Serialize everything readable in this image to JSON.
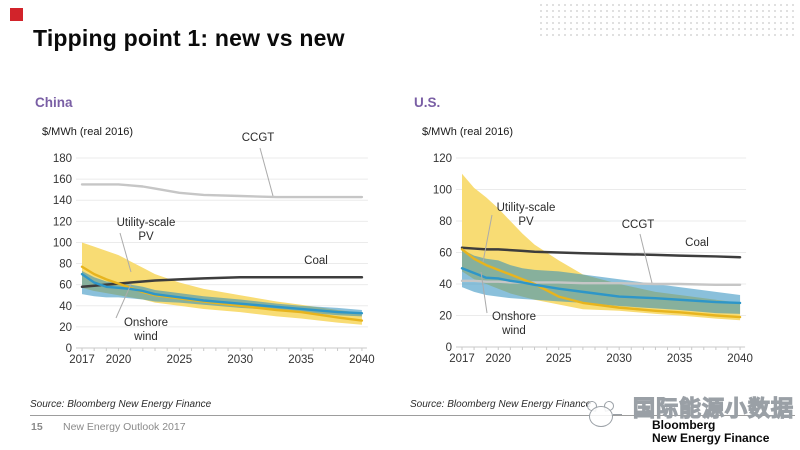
{
  "slide": {
    "title": "Tipping point 1: new vs new"
  },
  "colors": {
    "accent_red": "#D2232A",
    "heading_purple": "#7A5FA5",
    "ccgt_line": "#c6c6c6",
    "coal_line": "#3d3d3d",
    "pv_line": "#e7b41e",
    "wind_line": "#2e96c8",
    "pv_band": "#F8DC74",
    "wind_band": "rgba(41,140,190,0.55)"
  },
  "chart_data": [
    {
      "type": "line",
      "title": "China",
      "ylabel": "$/MWh (real 2016)",
      "xlim": [
        2017,
        2040
      ],
      "ylim": [
        0,
        180
      ],
      "grid": true,
      "y_ticks": [
        0,
        20,
        40,
        60,
        80,
        100,
        120,
        140,
        160,
        180
      ],
      "x_labeled_ticks": [
        2017,
        2020,
        2025,
        2030,
        2035,
        2040
      ],
      "years": [
        2017,
        2018,
        2019,
        2020,
        2021,
        2022,
        2023,
        2025,
        2027,
        2030,
        2033,
        2035,
        2038,
        2040
      ],
      "series": [
        {
          "name": "CCGT",
          "color": "#c6c6c6",
          "width": 2.4,
          "values": [
            155,
            155,
            155,
            155,
            154,
            153,
            151,
            147,
            145,
            144,
            143,
            143,
            143,
            143
          ]
        },
        {
          "name": "Coal",
          "color": "#3d3d3d",
          "width": 2.5,
          "values": [
            58,
            59,
            60,
            61,
            62,
            63,
            64,
            65,
            66,
            67,
            67,
            67,
            67,
            67
          ]
        },
        {
          "name": "Utility-scale PV",
          "color": "#e7b41e",
          "width": 2.4,
          "values": [
            77,
            70,
            65,
            61,
            57,
            53,
            50,
            47,
            44,
            40,
            36,
            34,
            29,
            26
          ],
          "band": {
            "color": "#F8DC74",
            "upper": [
              100,
              96,
              92,
              88,
              82,
              76,
              70,
              62,
              56,
              50,
              44,
              41,
              36,
              33
            ],
            "lower": [
              57,
              54,
              52,
              50,
              48,
              46,
              43,
              40,
              37,
              34,
              30,
              28,
              24,
              22
            ]
          }
        },
        {
          "name": "Onshore wind",
          "color": "#2e96c8",
          "width": 2.4,
          "values": [
            70,
            62,
            58,
            57,
            56,
            54,
            51,
            48,
            45,
            42,
            39,
            37,
            34,
            33
          ],
          "band": {
            "color": "rgba(41,140,190,0.55)",
            "upper": [
              73,
              67,
              63,
              62,
              60,
              58,
              55,
              52,
              49,
              46,
              42,
              40,
              38,
              36
            ],
            "lower": [
              51,
              49,
              48,
              48,
              47,
              46,
              44,
              43,
              41,
              38,
              36,
              34,
              31,
              30
            ]
          }
        }
      ],
      "annotations": {
        "ccgt": "CCGT",
        "pv": "Utility-scale\nPV",
        "wind": "Onshore\nwind",
        "coal": "Coal"
      }
    },
    {
      "type": "line",
      "title": "U.S.",
      "ylabel": "$/MWh (real 2016)",
      "xlim": [
        2017,
        2040
      ],
      "ylim": [
        0,
        120
      ],
      "grid": true,
      "y_ticks": [
        0,
        20,
        40,
        60,
        80,
        100,
        120
      ],
      "x_labeled_ticks": [
        2017,
        2020,
        2025,
        2030,
        2035,
        2040
      ],
      "years": [
        2017,
        2018,
        2019,
        2020,
        2021,
        2022,
        2023,
        2025,
        2027,
        2030,
        2033,
        2035,
        2038,
        2040
      ],
      "series": [
        {
          "name": "CCGT",
          "color": "#c6c6c6",
          "width": 2.4,
          "values": [
            42,
            42,
            41.5,
            41.5,
            41,
            41,
            41,
            41,
            40.5,
            40.5,
            40,
            40,
            39.5,
            39.5
          ]
        },
        {
          "name": "Coal",
          "color": "#3d3d3d",
          "width": 2.5,
          "values": [
            63,
            62.5,
            62,
            62,
            61.5,
            61,
            60.5,
            60,
            59.5,
            59,
            58.5,
            58,
            57.5,
            57
          ]
        },
        {
          "name": "Utility-scale PV",
          "color": "#e7b41e",
          "width": 2.4,
          "values": [
            62,
            56,
            52,
            49,
            46,
            43,
            40,
            32,
            28,
            25,
            23,
            22,
            20,
            19
          ],
          "band": {
            "color": "#F8DC74",
            "upper": [
              110,
              101,
              95,
              88,
              80,
              72,
              65,
              55,
              46,
              40,
              35,
              33,
              30,
              28
            ],
            "lower": [
              48,
              43,
              40,
              37,
              34,
              32,
              30,
              27,
              24,
              23,
              21,
              20,
              18,
              17
            ]
          }
        },
        {
          "name": "Onshore wind",
          "color": "#2e96c8",
          "width": 2.4,
          "values": [
            50,
            47,
            44,
            43.5,
            42,
            41,
            39.5,
            37,
            35,
            32,
            31,
            30,
            28.5,
            28
          ],
          "band": {
            "color": "rgba(41,140,190,0.55)",
            "upper": [
              62,
              58,
              56,
              55,
              52,
              50,
              49,
              48,
              46,
              43,
              40,
              38,
              35,
              33
            ],
            "lower": [
              38,
              35,
              33,
              32,
              31,
              30.5,
              30,
              29,
              28,
              26,
              24.5,
              23.5,
              21.5,
              21
            ]
          }
        }
      ],
      "annotations": {
        "ccgt": "CCGT",
        "pv": "Utility-scale\nPV",
        "wind": "Onshore\nwind",
        "coal": "Coal"
      }
    }
  ],
  "footer": {
    "source": "Source: Bloomberg New Energy Finance",
    "page_number": "15",
    "report": "New Energy Outlook 2017"
  },
  "watermark": {
    "text": "国际能源小数据"
  },
  "logo": {
    "line1": "Bloomberg",
    "line2": "New Energy Finance"
  }
}
